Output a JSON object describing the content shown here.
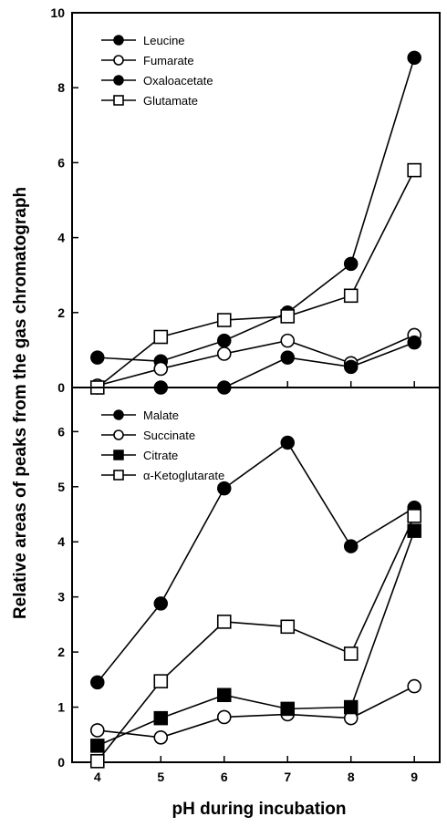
{
  "chart_data": [
    {
      "type": "line",
      "panel": "top",
      "x": [
        4,
        5,
        6,
        7,
        8,
        9
      ],
      "xlim": [
        3.6,
        9.4
      ],
      "ylim": [
        0,
        10
      ],
      "yticks": [
        0,
        2,
        4,
        6,
        8,
        10
      ],
      "ytick_labels": [
        "0",
        "2",
        "4",
        "6",
        "8",
        "10"
      ],
      "legend_position": "top-left",
      "grid": false,
      "series": [
        {
          "name": "Leucine",
          "marker": "filled-circle",
          "values": [
            0.8,
            0.7,
            1.25,
            2.0,
            3.3,
            8.8
          ]
        },
        {
          "name": "Fumarate",
          "marker": "open-circle",
          "values": [
            0.05,
            0.5,
            0.9,
            1.25,
            0.65,
            1.4
          ]
        },
        {
          "name": "Oxaloacetate",
          "marker": "filled-circle",
          "values": [
            0.0,
            0.0,
            0.0,
            0.8,
            0.55,
            1.2
          ]
        },
        {
          "name": "Glutamate",
          "marker": "open-square",
          "values": [
            0.0,
            1.35,
            1.8,
            1.9,
            2.45,
            5.8
          ]
        }
      ]
    },
    {
      "type": "line",
      "panel": "bottom",
      "x": [
        4,
        5,
        6,
        7,
        8,
        9
      ],
      "xlim": [
        3.6,
        9.4
      ],
      "ylim": [
        0,
        6.8
      ],
      "yticks": [
        0,
        1,
        2,
        3,
        4,
        5,
        6
      ],
      "ytick_labels": [
        "0",
        "1",
        "2",
        "3",
        "4",
        "5",
        "6"
      ],
      "legend_position": "top-left",
      "grid": false,
      "series": [
        {
          "name": "Malate",
          "marker": "filled-circle",
          "values": [
            1.45,
            2.88,
            4.97,
            5.8,
            3.92,
            4.62
          ]
        },
        {
          "name": "Succinate",
          "marker": "open-circle",
          "values": [
            0.58,
            0.45,
            0.82,
            0.87,
            0.8,
            1.38
          ]
        },
        {
          "name": "Citrate",
          "marker": "filled-square",
          "values": [
            0.3,
            0.8,
            1.22,
            0.97,
            1.0,
            4.2
          ]
        },
        {
          "name": "α-Ketoglutarate",
          "marker": "open-square",
          "values": [
            0.02,
            1.47,
            2.55,
            2.46,
            1.97,
            4.47
          ]
        }
      ]
    }
  ],
  "xaxis": {
    "label": "pH during incubation",
    "ticks": [
      4,
      5,
      6,
      7,
      8,
      9
    ],
    "tick_labels": [
      "4",
      "5",
      "6",
      "7",
      "8",
      "9"
    ]
  },
  "yaxis": {
    "label": "Relative areas of peaks from the gas chromatograph"
  }
}
